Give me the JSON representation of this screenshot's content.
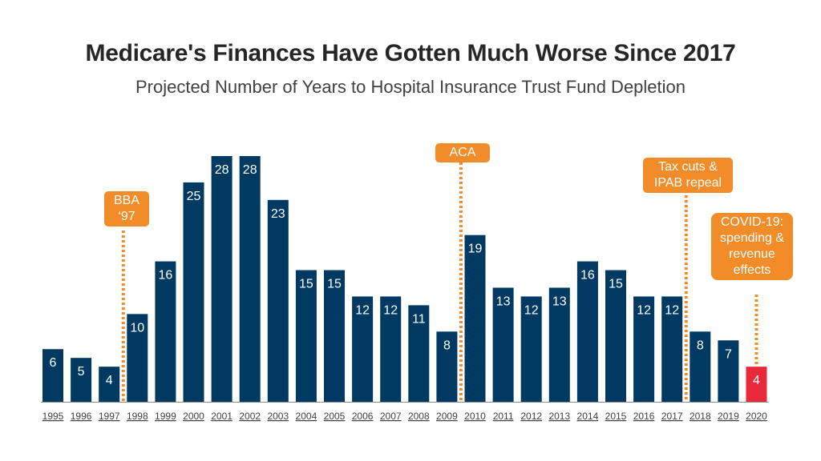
{
  "chart_data": {
    "type": "bar",
    "title": "Medicare's Finances Have Gotten Much Worse Since 2017",
    "subtitle": "Projected Number of Years to Hospital Insurance Trust Fund Depletion",
    "categories": [
      "1995",
      "1996",
      "1997",
      "1998",
      "1999",
      "2000",
      "2001",
      "2002",
      "2003",
      "2004",
      "2005",
      "2006",
      "2007",
      "2008",
      "2009",
      "2010",
      "2011",
      "2012",
      "2013",
      "2014",
      "2015",
      "2016",
      "2017",
      "2018",
      "2019",
      "2020"
    ],
    "values": [
      6,
      5,
      4,
      10,
      16,
      25,
      28,
      28,
      23,
      15,
      15,
      12,
      12,
      11,
      8,
      19,
      13,
      12,
      13,
      16,
      15,
      12,
      12,
      8,
      7,
      4
    ],
    "ylim": [
      0,
      28
    ],
    "xlabel": "",
    "ylabel": "",
    "highlight_category": "2020",
    "annotations": [
      {
        "label": "BBA\n‘97",
        "between": [
          "1997",
          "1998"
        ]
      },
      {
        "label": "ACA",
        "between": [
          "2009",
          "2010"
        ]
      },
      {
        "label": "Tax cuts &\nIPAB repeal",
        "between": [
          "2017",
          "2018"
        ]
      },
      {
        "label": "COVID-19:\nspending &\nrevenue\neffects",
        "category": "2020"
      }
    ]
  },
  "colors": {
    "bar": "#003a63",
    "highlight": "#e8293a",
    "annotation": "#f28c28",
    "axis": "#8a8a8a"
  }
}
